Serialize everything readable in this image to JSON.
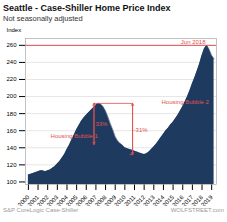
{
  "chart_data": {
    "type": "area",
    "title": "Seattle - Case-Shiller Home Price Index",
    "subtitle": "Not seasonally adjusted",
    "ylabel": "Index",
    "source": "S&P CoreLogic Case-Shiller",
    "credit": "WOLFSTREET.com",
    "color": "#1e3a5f",
    "x": [
      2000,
      2000.25,
      2000.5,
      2000.75,
      2001,
      2001.25,
      2001.5,
      2001.75,
      2002,
      2002.25,
      2002.5,
      2002.75,
      2003,
      2003.25,
      2003.5,
      2003.75,
      2004,
      2004.25,
      2004.5,
      2004.75,
      2005,
      2005.25,
      2005.5,
      2005.75,
      2006,
      2006.25,
      2006.5,
      2006.75,
      2007,
      2007.25,
      2007.5,
      2007.75,
      2008,
      2008.25,
      2008.5,
      2008.75,
      2009,
      2009.25,
      2009.5,
      2009.75,
      2010,
      2010.25,
      2010.5,
      2010.75,
      2011,
      2011.25,
      2011.5,
      2011.75,
      2012,
      2012.25,
      2012.5,
      2012.75,
      2013,
      2013.25,
      2013.5,
      2013.75,
      2014,
      2014.25,
      2014.5,
      2014.75,
      2015,
      2015.25,
      2015.5,
      2015.75,
      2016,
      2016.25,
      2016.5,
      2016.75,
      2017,
      2017.25,
      2017.5,
      2017.75,
      2018,
      2018.25,
      2018.5,
      2018.75,
      2019,
      2019.25
    ],
    "values": [
      108,
      109,
      110,
      111,
      112,
      113,
      113,
      112,
      113,
      114,
      116,
      118,
      121,
      124,
      128,
      132,
      138,
      143,
      149,
      155,
      161,
      166,
      171,
      175,
      178,
      181,
      184,
      187,
      190,
      192,
      191,
      188,
      183,
      176,
      168,
      161,
      153,
      148,
      145,
      143,
      140,
      139,
      138,
      137,
      136,
      135,
      134,
      133,
      132,
      133,
      135,
      138,
      141,
      144,
      148,
      152,
      156,
      160,
      163,
      167,
      170,
      174,
      178,
      183,
      188,
      194,
      200,
      207,
      215,
      222,
      230,
      238,
      248,
      256,
      260,
      255,
      248,
      244
    ],
    "xlim": [
      1999.7,
      2019.5
    ],
    "xticks": [
      2000,
      2001,
      2002,
      2003,
      2004,
      2005,
      2006,
      2007,
      2008,
      2009,
      2010,
      2011,
      2012,
      2013,
      2014,
      2015,
      2016,
      2017,
      2018,
      2019
    ],
    "ylim": [
      97,
      268
    ],
    "yticks": [
      100,
      120,
      140,
      160,
      180,
      200,
      220,
      240,
      260
    ],
    "grid": true,
    "reference_lines": [
      {
        "y": 260,
        "color": "#e05050"
      }
    ],
    "arrows": [
      {
        "x": 2006.8,
        "y1": 144,
        "y2": 192,
        "color": "#e05050"
      },
      {
        "x": 2010.8,
        "y1": 192,
        "y2": 132,
        "color": "#e05050"
      }
    ],
    "connectors": [
      {
        "x1": 2006.8,
        "x2": 2010.8,
        "y": 192,
        "color": "#e05050"
      },
      {
        "x1": 2010.5,
        "x2": 2010.8,
        "y": 132,
        "color": "#e05050"
      }
    ],
    "annotations": [
      {
        "text": "Jun 2018",
        "x": 2015.8,
        "y": 262,
        "color": "#e05050"
      },
      {
        "text": "33%",
        "x": 2006.95,
        "y": 165,
        "color": "#e05050"
      },
      {
        "text": "-31%",
        "x": 2010.9,
        "y": 158,
        "color": "#e05050"
      },
      {
        "text": "Housing Bubble 1",
        "x": 2002.3,
        "y": 151,
        "color": "#e05050"
      },
      {
        "text": "Housing Bubble 2",
        "x": 2013.8,
        "y": 191,
        "color": "#e05050"
      }
    ]
  }
}
